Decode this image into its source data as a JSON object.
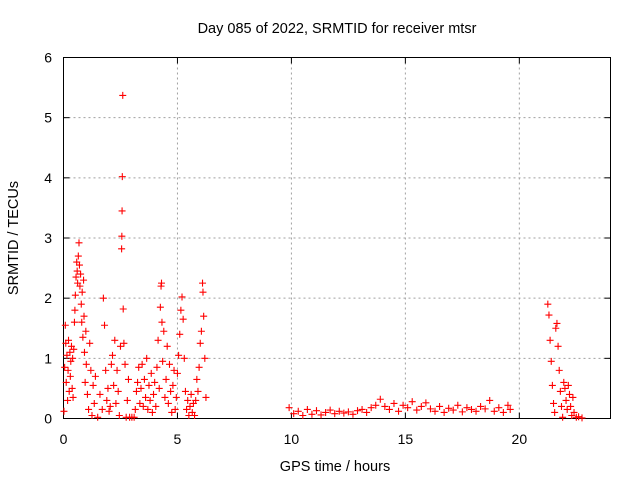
{
  "chart_data": {
    "type": "scatter",
    "title": "Day 085 of 2022, SRMTID for receiver mtsr",
    "xlabel": "GPS time / hours",
    "ylabel": "SRMTID / TECUs",
    "xlim": [
      0,
      24
    ],
    "ylim": [
      0,
      6
    ],
    "xticks": [
      0,
      5,
      10,
      15,
      20
    ],
    "yticks": [
      0,
      1,
      2,
      3,
      4,
      5,
      6
    ],
    "grid": true,
    "marker": "+",
    "color": "#ff0000",
    "series": [
      {
        "name": "SRMTID",
        "points": [
          [
            0.02,
            0.12
          ],
          [
            0.05,
            0.85
          ],
          [
            0.08,
            1.55
          ],
          [
            0.1,
            1.25
          ],
          [
            0.12,
            0.6
          ],
          [
            0.15,
            1.05
          ],
          [
            0.18,
            0.3
          ],
          [
            0.2,
            0.8
          ],
          [
            0.22,
            1.3
          ],
          [
            0.25,
            0.45
          ],
          [
            0.28,
            1.1
          ],
          [
            0.3,
            0.7
          ],
          [
            0.32,
            0.95
          ],
          [
            0.35,
            1.2
          ],
          [
            0.38,
            0.5
          ],
          [
            0.4,
            1.0
          ],
          [
            0.42,
            0.35
          ],
          [
            0.45,
            1.15
          ],
          [
            0.48,
            1.6
          ],
          [
            0.5,
            1.8
          ],
          [
            0.52,
            2.05
          ],
          [
            0.55,
            2.35
          ],
          [
            0.58,
            2.6
          ],
          [
            0.6,
            2.45
          ],
          [
            0.62,
            2.25
          ],
          [
            0.65,
            2.7
          ],
          [
            0.68,
            2.92
          ],
          [
            0.7,
            2.55
          ],
          [
            0.72,
            2.2
          ],
          [
            0.75,
            2.4
          ],
          [
            0.78,
            1.9
          ],
          [
            0.8,
            1.6
          ],
          [
            0.82,
            2.1
          ],
          [
            0.85,
            1.35
          ],
          [
            0.88,
            2.3
          ],
          [
            0.9,
            1.7
          ],
          [
            0.92,
            1.1
          ],
          [
            0.95,
            0.6
          ],
          [
            0.98,
            1.45
          ],
          [
            1.0,
            0.9
          ],
          [
            1.05,
            0.4
          ],
          [
            1.1,
            0.15
          ],
          [
            1.15,
            1.25
          ],
          [
            1.2,
            0.8
          ],
          [
            1.25,
            0.05
          ],
          [
            1.3,
            0.55
          ],
          [
            1.35,
            0.25
          ],
          [
            1.4,
            0.7
          ],
          [
            1.5,
            0.02
          ],
          [
            1.6,
            0.4
          ],
          [
            1.7,
            0.15
          ],
          [
            1.75,
            2.0
          ],
          [
            1.8,
            1.55
          ],
          [
            1.85,
            0.8
          ],
          [
            1.9,
            0.3
          ],
          [
            1.95,
            0.5
          ],
          [
            2.0,
            0.12
          ],
          [
            2.05,
            0.2
          ],
          [
            2.1,
            0.9
          ],
          [
            2.15,
            1.05
          ],
          [
            2.2,
            0.55
          ],
          [
            2.25,
            1.3
          ],
          [
            2.3,
            0.25
          ],
          [
            2.35,
            0.8
          ],
          [
            2.4,
            0.45
          ],
          [
            2.45,
            0.05
          ],
          [
            2.5,
            1.2
          ],
          [
            2.55,
            2.82
          ],
          [
            2.56,
            3.03
          ],
          [
            2.57,
            3.45
          ],
          [
            2.58,
            4.02
          ],
          [
            2.6,
            5.37
          ],
          [
            2.62,
            1.82
          ],
          [
            2.65,
            1.25
          ],
          [
            2.7,
            0.9
          ],
          [
            2.75,
            0.02
          ],
          [
            2.8,
            0.3
          ],
          [
            2.85,
            0.65
          ],
          [
            2.9,
            0.02
          ],
          [
            3.0,
            0.02
          ],
          [
            3.1,
            0.02
          ],
          [
            3.15,
            0.15
          ],
          [
            3.2,
            0.45
          ],
          [
            3.25,
            0.6
          ],
          [
            3.3,
            0.85
          ],
          [
            3.35,
            0.25
          ],
          [
            3.4,
            0.5
          ],
          [
            3.45,
            0.9
          ],
          [
            3.5,
            0.2
          ],
          [
            3.55,
            0.65
          ],
          [
            3.6,
            0.35
          ],
          [
            3.65,
            1.0
          ],
          [
            3.7,
            0.15
          ],
          [
            3.75,
            0.55
          ],
          [
            3.8,
            0.3
          ],
          [
            3.85,
            0.75
          ],
          [
            3.9,
            0.1
          ],
          [
            3.95,
            0.4
          ],
          [
            4.0,
            0.6
          ],
          [
            4.05,
            0.2
          ],
          [
            4.1,
            0.85
          ],
          [
            4.15,
            1.3
          ],
          [
            4.2,
            0.5
          ],
          [
            4.25,
            1.85
          ],
          [
            4.28,
            2.2
          ],
          [
            4.3,
            2.25
          ],
          [
            4.32,
            1.6
          ],
          [
            4.35,
            0.95
          ],
          [
            4.4,
            1.45
          ],
          [
            4.45,
            0.35
          ],
          [
            4.5,
            0.65
          ],
          [
            4.55,
            1.2
          ],
          [
            4.6,
            0.25
          ],
          [
            4.65,
            0.9
          ],
          [
            4.7,
            0.45
          ],
          [
            4.75,
            0.1
          ],
          [
            4.8,
            0.55
          ],
          [
            4.85,
            0.8
          ],
          [
            4.9,
            0.15
          ],
          [
            4.95,
            0.35
          ],
          [
            5.0,
            0.75
          ],
          [
            5.05,
            1.05
          ],
          [
            5.1,
            1.4
          ],
          [
            5.15,
            1.8
          ],
          [
            5.2,
            2.02
          ],
          [
            5.25,
            1.65
          ],
          [
            5.3,
            1.0
          ],
          [
            5.35,
            0.45
          ],
          [
            5.4,
            0.15
          ],
          [
            5.45,
            0.3
          ],
          [
            5.5,
            0.05
          ],
          [
            5.55,
            0.2
          ],
          [
            5.6,
            0.4
          ],
          [
            5.65,
            0.1
          ],
          [
            5.7,
            0.25
          ],
          [
            5.75,
            0.05
          ],
          [
            5.8,
            0.3
          ],
          [
            5.85,
            0.65
          ],
          [
            5.9,
            0.45
          ],
          [
            5.95,
            0.85
          ],
          [
            6.0,
            1.25
          ],
          [
            6.05,
            1.45
          ],
          [
            6.1,
            2.25
          ],
          [
            6.12,
            2.1
          ],
          [
            6.15,
            1.7
          ],
          [
            6.2,
            1.0
          ],
          [
            6.25,
            0.35
          ],
          [
            9.9,
            0.18
          ],
          [
            10.1,
            0.08
          ],
          [
            10.3,
            0.12
          ],
          [
            10.5,
            0.05
          ],
          [
            10.7,
            0.15
          ],
          [
            10.9,
            0.07
          ],
          [
            11.1,
            0.13
          ],
          [
            11.3,
            0.06
          ],
          [
            11.5,
            0.1
          ],
          [
            11.7,
            0.14
          ],
          [
            11.9,
            0.08
          ],
          [
            12.1,
            0.12
          ],
          [
            12.3,
            0.09
          ],
          [
            12.5,
            0.11
          ],
          [
            12.7,
            0.07
          ],
          [
            12.9,
            0.13
          ],
          [
            13.1,
            0.15
          ],
          [
            13.3,
            0.1
          ],
          [
            13.5,
            0.18
          ],
          [
            13.7,
            0.22
          ],
          [
            13.9,
            0.32
          ],
          [
            14.1,
            0.2
          ],
          [
            14.3,
            0.15
          ],
          [
            14.5,
            0.25
          ],
          [
            14.7,
            0.12
          ],
          [
            14.9,
            0.22
          ],
          [
            15.1,
            0.18
          ],
          [
            15.3,
            0.28
          ],
          [
            15.5,
            0.14
          ],
          [
            15.7,
            0.2
          ],
          [
            15.9,
            0.26
          ],
          [
            16.1,
            0.16
          ],
          [
            16.3,
            0.12
          ],
          [
            16.5,
            0.2
          ],
          [
            16.7,
            0.1
          ],
          [
            16.9,
            0.17
          ],
          [
            17.1,
            0.14
          ],
          [
            17.3,
            0.22
          ],
          [
            17.5,
            0.11
          ],
          [
            17.7,
            0.18
          ],
          [
            17.9,
            0.15
          ],
          [
            18.1,
            0.12
          ],
          [
            18.3,
            0.2
          ],
          [
            18.5,
            0.16
          ],
          [
            18.7,
            0.3
          ],
          [
            18.9,
            0.12
          ],
          [
            19.1,
            0.18
          ],
          [
            19.3,
            0.1
          ],
          [
            19.5,
            0.22
          ],
          [
            19.6,
            0.15
          ],
          [
            21.25,
            1.9
          ],
          [
            21.3,
            1.72
          ],
          [
            21.35,
            1.3
          ],
          [
            21.4,
            0.95
          ],
          [
            21.45,
            0.55
          ],
          [
            21.5,
            0.25
          ],
          [
            21.55,
            0.1
          ],
          [
            21.6,
            1.5
          ],
          [
            21.65,
            1.58
          ],
          [
            21.7,
            1.2
          ],
          [
            21.75,
            0.8
          ],
          [
            21.8,
            0.45
          ],
          [
            21.85,
            0.2
          ],
          [
            21.9,
            0.02
          ],
          [
            21.95,
            0.6
          ],
          [
            22.0,
            0.5
          ],
          [
            22.05,
            0.3
          ],
          [
            22.1,
            0.15
          ],
          [
            22.15,
            0.55
          ],
          [
            22.2,
            0.4
          ],
          [
            22.25,
            0.2
          ],
          [
            22.3,
            0.05
          ],
          [
            22.35,
            0.35
          ],
          [
            22.4,
            0.1
          ],
          [
            22.5,
            0.02
          ],
          [
            22.6,
            0.03
          ],
          [
            22.75,
            0.01
          ]
        ]
      }
    ]
  }
}
